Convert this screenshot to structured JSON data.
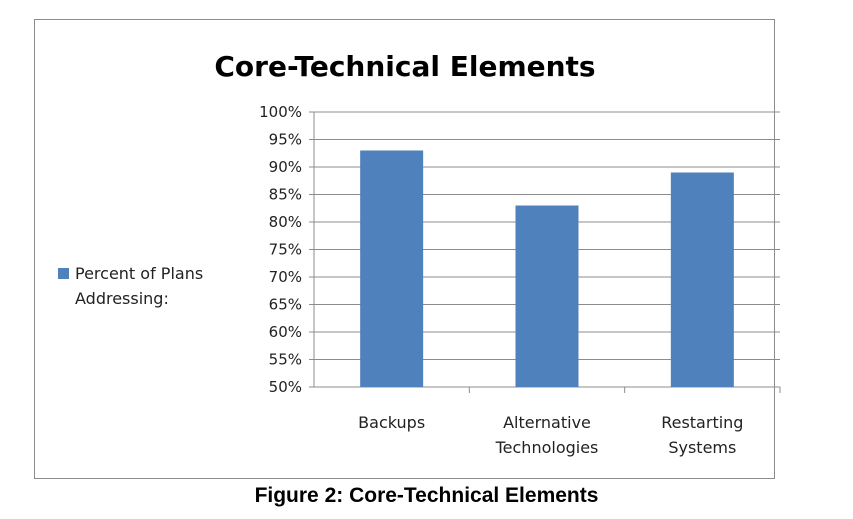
{
  "caption": "Figure 2: Core-Technical Elements",
  "chart_data": {
    "type": "bar",
    "title": "Core-Technical Elements",
    "categories": [
      "Backups",
      "Alternative\nTechnologies",
      "Restarting\nSystems"
    ],
    "series": [
      {
        "name": "Percent of Plans Addressing:",
        "values": [
          93,
          83,
          89
        ],
        "color": "#4f81bd"
      }
    ],
    "ylim": [
      50,
      100
    ],
    "yticks": [
      "50%",
      "55%",
      "60%",
      "65%",
      "70%",
      "75%",
      "80%",
      "85%",
      "90%",
      "95%",
      "100%"
    ],
    "grid": true,
    "legend": "left"
  }
}
